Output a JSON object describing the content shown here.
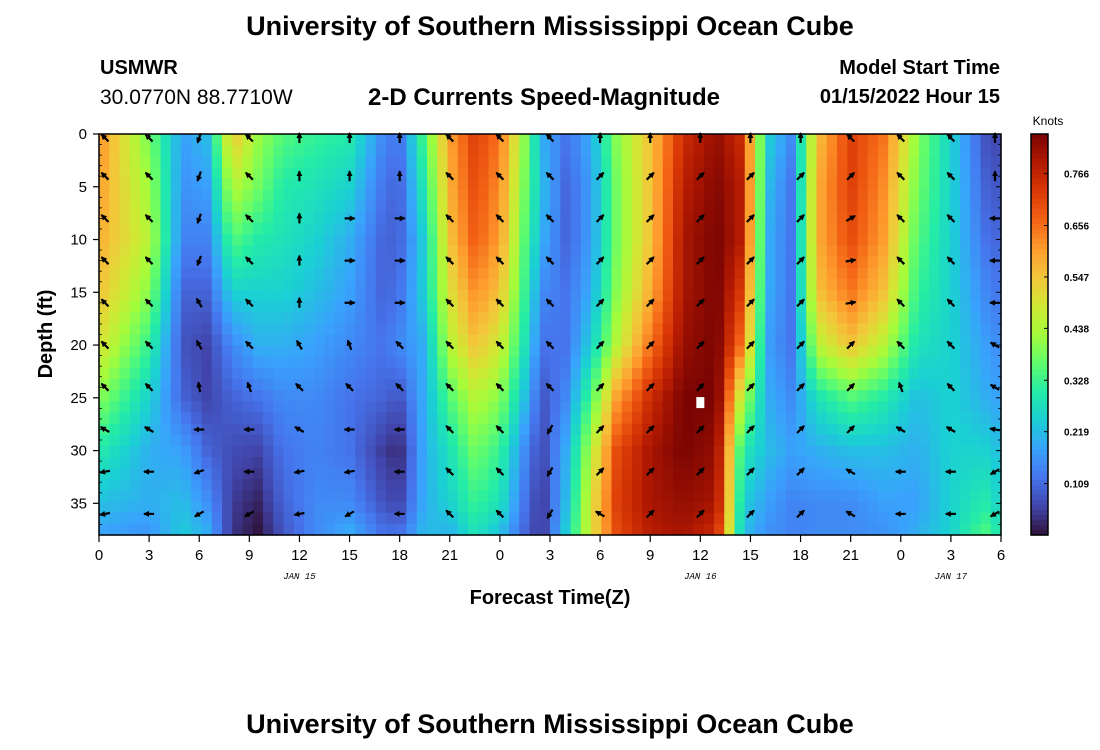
{
  "header": {
    "title": "University of Southern Mississippi Ocean Cube",
    "station": "USMWR",
    "coordinates": "30.0770N  88.7710W",
    "subtitle": "2-D Currents Speed-Magnitude",
    "start_label": "Model Start Time",
    "start_value": "01/15/2022 Hour 15"
  },
  "footer": {
    "title": "University of Southern Mississippi Ocean Cube"
  },
  "chart_data": {
    "type": "heatmap",
    "title": "2-D Currents Speed-Magnitude",
    "xlabel": "Forecast Time(Z)",
    "ylabel": "Depth (ft)",
    "x_range_hours": [
      0,
      54
    ],
    "ylim": [
      0,
      38
    ],
    "y_ticks": [
      0,
      5,
      10,
      15,
      20,
      25,
      30,
      35
    ],
    "x_tick_labels": [
      "0",
      "3",
      "6",
      "9",
      "12",
      "15",
      "18",
      "21",
      "0",
      "3",
      "6",
      "9",
      "12",
      "15",
      "18",
      "21",
      "0",
      "3",
      "6"
    ],
    "date_labels": [
      {
        "text": "JAN 15",
        "hour": 12
      },
      {
        "text": "JAN 16",
        "hour": 36
      },
      {
        "text": "JAN 17",
        "hour": 51
      }
    ],
    "colorbar": {
      "label": "Knots",
      "min": 0.0,
      "max": 0.85,
      "ticks": [
        "0.109",
        "0.219",
        "0.328",
        "0.438",
        "0.547",
        "0.656",
        "0.766"
      ]
    },
    "colormap": [
      "#30123b",
      "#4145ab",
      "#4675ed",
      "#39a2fc",
      "#1bcfd4",
      "#24eca6",
      "#61fc6c",
      "#a4fc3b",
      "#d1e834",
      "#f3c63a",
      "#fe9b2d",
      "#f36315",
      "#d93806",
      "#b11901",
      "#7a0403"
    ],
    "speed_profiles": [
      {
        "hour": 0.0,
        "speeds": [
          0.62,
          0.6,
          0.58,
          0.55,
          0.5,
          0.4,
          0.3,
          0.22,
          0.18
        ]
      },
      {
        "hour": 3.0,
        "speeds": [
          0.38,
          0.42,
          0.45,
          0.4,
          0.32,
          0.25,
          0.2,
          0.2,
          0.16
        ]
      },
      {
        "hour": 5.0,
        "speeds": [
          0.18,
          0.16,
          0.14,
          0.1,
          0.08,
          0.1,
          0.18,
          0.22,
          0.24
        ]
      },
      {
        "hour": 6.5,
        "speeds": [
          0.22,
          0.18,
          0.14,
          0.1,
          0.06,
          0.06,
          0.1,
          0.16,
          0.2
        ]
      },
      {
        "hour": 8.0,
        "speeds": [
          0.55,
          0.45,
          0.35,
          0.25,
          0.15,
          0.1,
          0.07,
          0.05,
          0.04
        ]
      },
      {
        "hour": 9.5,
        "speeds": [
          0.42,
          0.38,
          0.3,
          0.25,
          0.2,
          0.12,
          0.06,
          0.02,
          0.0
        ]
      },
      {
        "hour": 11.0,
        "speeds": [
          0.35,
          0.3,
          0.28,
          0.25,
          0.2,
          0.15,
          0.12,
          0.1,
          0.08
        ]
      },
      {
        "hour": 13.0,
        "speeds": [
          0.32,
          0.28,
          0.25,
          0.22,
          0.18,
          0.15,
          0.14,
          0.15,
          0.15
        ]
      },
      {
        "hour": 15.0,
        "speeds": [
          0.3,
          0.25,
          0.2,
          0.18,
          0.15,
          0.12,
          0.12,
          0.15,
          0.2
        ]
      },
      {
        "hour": 17.0,
        "speeds": [
          0.15,
          0.12,
          0.1,
          0.1,
          0.12,
          0.1,
          0.05,
          0.08,
          0.12
        ]
      },
      {
        "hour": 18.0,
        "speeds": [
          0.12,
          0.1,
          0.1,
          0.12,
          0.15,
          0.08,
          0.03,
          0.06,
          0.12
        ]
      },
      {
        "hour": 19.5,
        "speeds": [
          0.35,
          0.3,
          0.25,
          0.25,
          0.2,
          0.2,
          0.2,
          0.2,
          0.22
        ]
      },
      {
        "hour": 21.0,
        "speeds": [
          0.6,
          0.58,
          0.55,
          0.5,
          0.45,
          0.35,
          0.28,
          0.25,
          0.2
        ]
      },
      {
        "hour": 22.5,
        "speeds": [
          0.72,
          0.7,
          0.68,
          0.62,
          0.55,
          0.45,
          0.38,
          0.32,
          0.28
        ]
      },
      {
        "hour": 24.0,
        "speeds": [
          0.65,
          0.62,
          0.6,
          0.55,
          0.48,
          0.4,
          0.32,
          0.28,
          0.22
        ]
      },
      {
        "hour": 25.5,
        "speeds": [
          0.4,
          0.38,
          0.35,
          0.32,
          0.28,
          0.22,
          0.15,
          0.12,
          0.1
        ]
      },
      {
        "hour": 26.5,
        "speeds": [
          0.2,
          0.22,
          0.2,
          0.15,
          0.12,
          0.08,
          0.06,
          0.04,
          0.04
        ]
      },
      {
        "hour": 28.0,
        "speeds": [
          0.12,
          0.1,
          0.1,
          0.12,
          0.12,
          0.15,
          0.2,
          0.22,
          0.25
        ]
      },
      {
        "hour": 29.5,
        "speeds": [
          0.2,
          0.18,
          0.18,
          0.2,
          0.25,
          0.35,
          0.45,
          0.5,
          0.5
        ]
      },
      {
        "hour": 31.0,
        "speeds": [
          0.4,
          0.38,
          0.38,
          0.4,
          0.45,
          0.6,
          0.7,
          0.72,
          0.7
        ]
      },
      {
        "hour": 33.0,
        "speeds": [
          0.55,
          0.55,
          0.55,
          0.58,
          0.65,
          0.75,
          0.8,
          0.8,
          0.78
        ]
      },
      {
        "hour": 35.0,
        "speeds": [
          0.75,
          0.78,
          0.8,
          0.8,
          0.82,
          0.85,
          0.85,
          0.82,
          0.8
        ]
      },
      {
        "hour": 37.0,
        "speeds": [
          0.82,
          0.84,
          0.85,
          0.85,
          0.85,
          0.85,
          0.82,
          0.8,
          0.75
        ]
      },
      {
        "hour": 38.5,
        "speeds": [
          0.75,
          0.78,
          0.78,
          0.72,
          0.65,
          0.45,
          0.3,
          0.25,
          0.22
        ]
      },
      {
        "hour": 40.0,
        "speeds": [
          0.25,
          0.22,
          0.2,
          0.2,
          0.18,
          0.2,
          0.22,
          0.18,
          0.16
        ]
      },
      {
        "hour": 41.5,
        "speeds": [
          0.15,
          0.12,
          0.12,
          0.12,
          0.12,
          0.15,
          0.18,
          0.14,
          0.14
        ]
      },
      {
        "hour": 43.0,
        "speeds": [
          0.55,
          0.58,
          0.58,
          0.55,
          0.45,
          0.28,
          0.2,
          0.15,
          0.15
        ]
      },
      {
        "hour": 45.0,
        "speeds": [
          0.72,
          0.72,
          0.7,
          0.65,
          0.55,
          0.35,
          0.22,
          0.15,
          0.15
        ]
      },
      {
        "hour": 47.0,
        "speeds": [
          0.65,
          0.62,
          0.6,
          0.55,
          0.45,
          0.3,
          0.22,
          0.18,
          0.16
        ]
      },
      {
        "hour": 49.0,
        "speeds": [
          0.4,
          0.38,
          0.35,
          0.32,
          0.28,
          0.22,
          0.2,
          0.18,
          0.2
        ]
      },
      {
        "hour": 51.0,
        "speeds": [
          0.25,
          0.25,
          0.25,
          0.25,
          0.25,
          0.25,
          0.25,
          0.25,
          0.25
        ]
      },
      {
        "hour": 53.0,
        "speeds": [
          0.08,
          0.1,
          0.12,
          0.15,
          0.18,
          0.2,
          0.25,
          0.3,
          0.35
        ]
      },
      {
        "hour": 54.0,
        "speeds": [
          0.06,
          0.08,
          0.1,
          0.12,
          0.15,
          0.18,
          0.22,
          0.25,
          0.28
        ]
      }
    ],
    "profile_depths": [
      0,
      5,
      10,
      15,
      20,
      25,
      30,
      35,
      38
    ],
    "vector_hours": [
      0,
      3,
      6,
      9,
      12,
      15,
      18,
      21,
      24,
      27,
      30,
      33,
      36,
      39,
      42,
      45,
      48,
      51,
      54
    ],
    "vector_depths": [
      0,
      4,
      8,
      12,
      16,
      20,
      24,
      28,
      32,
      36
    ],
    "vector_directions_deg": [
      [
        315,
        315,
        200,
        315,
        0,
        0,
        0,
        315,
        315,
        315,
        0,
        0,
        0,
        0,
        0,
        315,
        315,
        315,
        0
      ],
      [
        315,
        315,
        200,
        315,
        0,
        0,
        0,
        315,
        315,
        315,
        45,
        45,
        45,
        45,
        45,
        45,
        315,
        315,
        0
      ],
      [
        315,
        315,
        200,
        315,
        0,
        90,
        90,
        315,
        315,
        315,
        45,
        45,
        45,
        45,
        45,
        60,
        315,
        315,
        270
      ],
      [
        315,
        315,
        200,
        315,
        0,
        90,
        90,
        315,
        315,
        315,
        45,
        45,
        45,
        45,
        45,
        80,
        315,
        315,
        270
      ],
      [
        315,
        315,
        330,
        315,
        0,
        90,
        90,
        315,
        315,
        315,
        45,
        45,
        45,
        45,
        45,
        80,
        315,
        315,
        270
      ],
      [
        315,
        315,
        330,
        315,
        330,
        340,
        315,
        315,
        315,
        315,
        45,
        45,
        45,
        45,
        45,
        45,
        315,
        315,
        300
      ],
      [
        315,
        315,
        350,
        340,
        315,
        315,
        315,
        315,
        315,
        315,
        45,
        45,
        45,
        45,
        45,
        45,
        340,
        315,
        300
      ],
      [
        300,
        300,
        270,
        270,
        300,
        270,
        270,
        315,
        315,
        210,
        45,
        45,
        45,
        45,
        45,
        45,
        300,
        300,
        280
      ],
      [
        260,
        270,
        250,
        270,
        260,
        260,
        270,
        315,
        315,
        210,
        45,
        45,
        45,
        45,
        45,
        300,
        270,
        270,
        240
      ],
      [
        260,
        270,
        240,
        240,
        260,
        240,
        270,
        315,
        315,
        210,
        300,
        45,
        45,
        45,
        45,
        300,
        270,
        270,
        240
      ]
    ],
    "marker": {
      "hour": 36,
      "depth": 25.5
    }
  }
}
